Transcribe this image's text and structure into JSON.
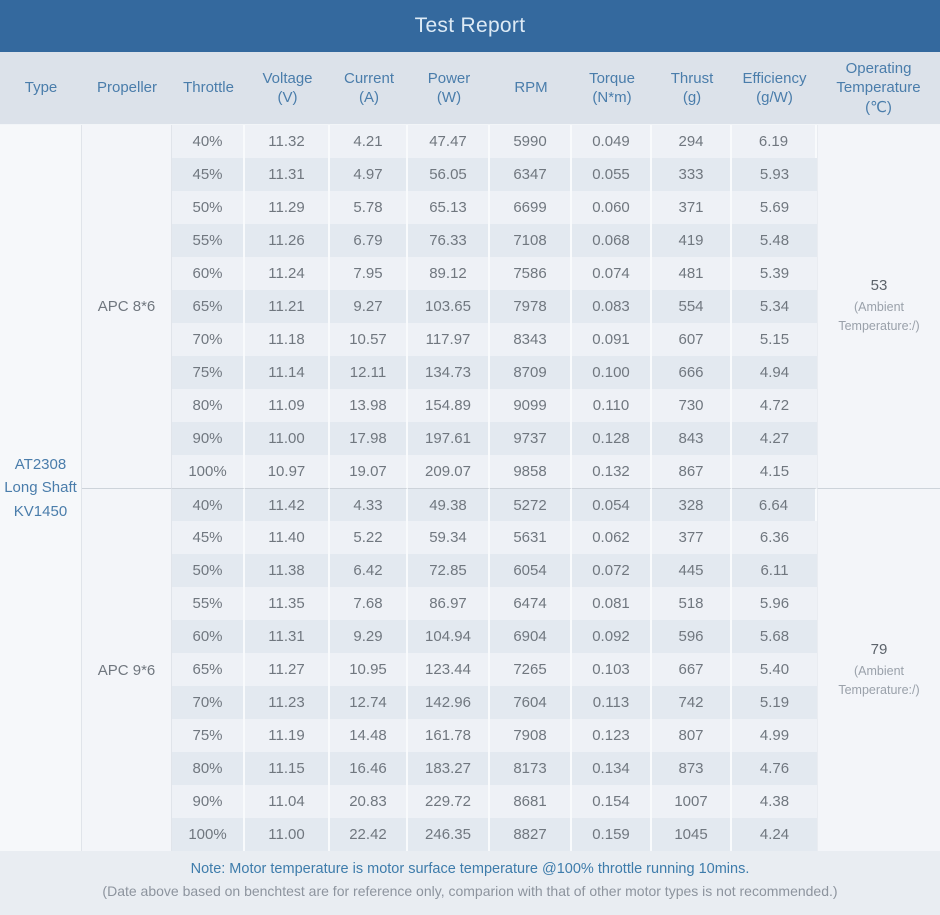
{
  "title_bar": {
    "title": "Test Report"
  },
  "table": {
    "columns": [
      {
        "label": "Type",
        "unit": ""
      },
      {
        "label": "Propeller",
        "unit": ""
      },
      {
        "label": "Throttle",
        "unit": ""
      },
      {
        "label": "Voltage",
        "unit": "(V)"
      },
      {
        "label": "Current",
        "unit": "(A)"
      },
      {
        "label": "Power",
        "unit": "(W)"
      },
      {
        "label": "RPM",
        "unit": ""
      },
      {
        "label": "Torque",
        "unit": "(N*m)"
      },
      {
        "label": "Thrust",
        "unit": "(g)"
      },
      {
        "label": "Efficiency",
        "unit": "(g/W)"
      },
      {
        "label": "Operating Temperature",
        "unit": "(℃)"
      }
    ],
    "type_cell": {
      "lines": [
        "AT2308",
        "Long Shaft",
        "KV1450"
      ]
    },
    "sections": [
      {
        "propeller": "APC 8*6",
        "temperature": {
          "value": "53",
          "ambient": "(Ambient Temperature:/)"
        },
        "rows": [
          {
            "throttle": "40%",
            "voltage": "11.32",
            "current": "4.21",
            "power": "47.47",
            "rpm": "5990",
            "torque": "0.049",
            "thrust": "294",
            "efficiency": "6.19"
          },
          {
            "throttle": "45%",
            "voltage": "11.31",
            "current": "4.97",
            "power": "56.05",
            "rpm": "6347",
            "torque": "0.055",
            "thrust": "333",
            "efficiency": "5.93"
          },
          {
            "throttle": "50%",
            "voltage": "11.29",
            "current": "5.78",
            "power": "65.13",
            "rpm": "6699",
            "torque": "0.060",
            "thrust": "371",
            "efficiency": "5.69"
          },
          {
            "throttle": "55%",
            "voltage": "11.26",
            "current": "6.79",
            "power": "76.33",
            "rpm": "7108",
            "torque": "0.068",
            "thrust": "419",
            "efficiency": "5.48"
          },
          {
            "throttle": "60%",
            "voltage": "11.24",
            "current": "7.95",
            "power": "89.12",
            "rpm": "7586",
            "torque": "0.074",
            "thrust": "481",
            "efficiency": "5.39"
          },
          {
            "throttle": "65%",
            "voltage": "11.21",
            "current": "9.27",
            "power": "103.65",
            "rpm": "7978",
            "torque": "0.083",
            "thrust": "554",
            "efficiency": "5.34"
          },
          {
            "throttle": "70%",
            "voltage": "11.18",
            "current": "10.57",
            "power": "117.97",
            "rpm": "8343",
            "torque": "0.091",
            "thrust": "607",
            "efficiency": "5.15"
          },
          {
            "throttle": "75%",
            "voltage": "11.14",
            "current": "12.11",
            "power": "134.73",
            "rpm": "8709",
            "torque": "0.100",
            "thrust": "666",
            "efficiency": "4.94"
          },
          {
            "throttle": "80%",
            "voltage": "11.09",
            "current": "13.98",
            "power": "154.89",
            "rpm": "9099",
            "torque": "0.110",
            "thrust": "730",
            "efficiency": "4.72"
          },
          {
            "throttle": "90%",
            "voltage": "11.00",
            "current": "17.98",
            "power": "197.61",
            "rpm": "9737",
            "torque": "0.128",
            "thrust": "843",
            "efficiency": "4.27"
          },
          {
            "throttle": "100%",
            "voltage": "10.97",
            "current": "19.07",
            "power": "209.07",
            "rpm": "9858",
            "torque": "0.132",
            "thrust": "867",
            "efficiency": "4.15"
          }
        ]
      },
      {
        "propeller": "APC 9*6",
        "temperature": {
          "value": "79",
          "ambient": "(Ambient Temperature:/)"
        },
        "rows": [
          {
            "throttle": "40%",
            "voltage": "11.42",
            "current": "4.33",
            "power": "49.38",
            "rpm": "5272",
            "torque": "0.054",
            "thrust": "328",
            "efficiency": "6.64"
          },
          {
            "throttle": "45%",
            "voltage": "11.40",
            "current": "5.22",
            "power": "59.34",
            "rpm": "5631",
            "torque": "0.062",
            "thrust": "377",
            "efficiency": "6.36"
          },
          {
            "throttle": "50%",
            "voltage": "11.38",
            "current": "6.42",
            "power": "72.85",
            "rpm": "6054",
            "torque": "0.072",
            "thrust": "445",
            "efficiency": "6.11"
          },
          {
            "throttle": "55%",
            "voltage": "11.35",
            "current": "7.68",
            "power": "86.97",
            "rpm": "6474",
            "torque": "0.081",
            "thrust": "518",
            "efficiency": "5.96"
          },
          {
            "throttle": "60%",
            "voltage": "11.31",
            "current": "9.29",
            "power": "104.94",
            "rpm": "6904",
            "torque": "0.092",
            "thrust": "596",
            "efficiency": "5.68"
          },
          {
            "throttle": "65%",
            "voltage": "11.27",
            "current": "10.95",
            "power": "123.44",
            "rpm": "7265",
            "torque": "0.103",
            "thrust": "667",
            "efficiency": "5.40"
          },
          {
            "throttle": "70%",
            "voltage": "11.23",
            "current": "12.74",
            "power": "142.96",
            "rpm": "7604",
            "torque": "0.113",
            "thrust": "742",
            "efficiency": "5.19"
          },
          {
            "throttle": "75%",
            "voltage": "11.19",
            "current": "14.48",
            "power": "161.78",
            "rpm": "7908",
            "torque": "0.123",
            "thrust": "807",
            "efficiency": "4.99"
          },
          {
            "throttle": "80%",
            "voltage": "11.15",
            "current": "16.46",
            "power": "183.27",
            "rpm": "8173",
            "torque": "0.134",
            "thrust": "873",
            "efficiency": "4.76"
          },
          {
            "throttle": "90%",
            "voltage": "11.04",
            "current": "20.83",
            "power": "229.72",
            "rpm": "8681",
            "torque": "0.154",
            "thrust": "1007",
            "efficiency": "4.38"
          },
          {
            "throttle": "100%",
            "voltage": "11.00",
            "current": "22.42",
            "power": "246.35",
            "rpm": "8827",
            "torque": "0.159",
            "thrust": "1045",
            "efficiency": "4.24"
          }
        ]
      }
    ]
  },
  "notes": {
    "line1": "Note: Motor temperature is motor surface temperature @100% throttle running 10mins.",
    "line2": "(Date above based on benchtest are for reference only, comparion with that of other motor types is not recommended.)"
  },
  "colors": {
    "title_bg": "#34699e",
    "header_bg": "#dce2ea",
    "header_text": "#4a7dab",
    "row_light": "#eef1f6",
    "row_dark": "#e3e9f0",
    "note_accent": "#3e7cab"
  }
}
